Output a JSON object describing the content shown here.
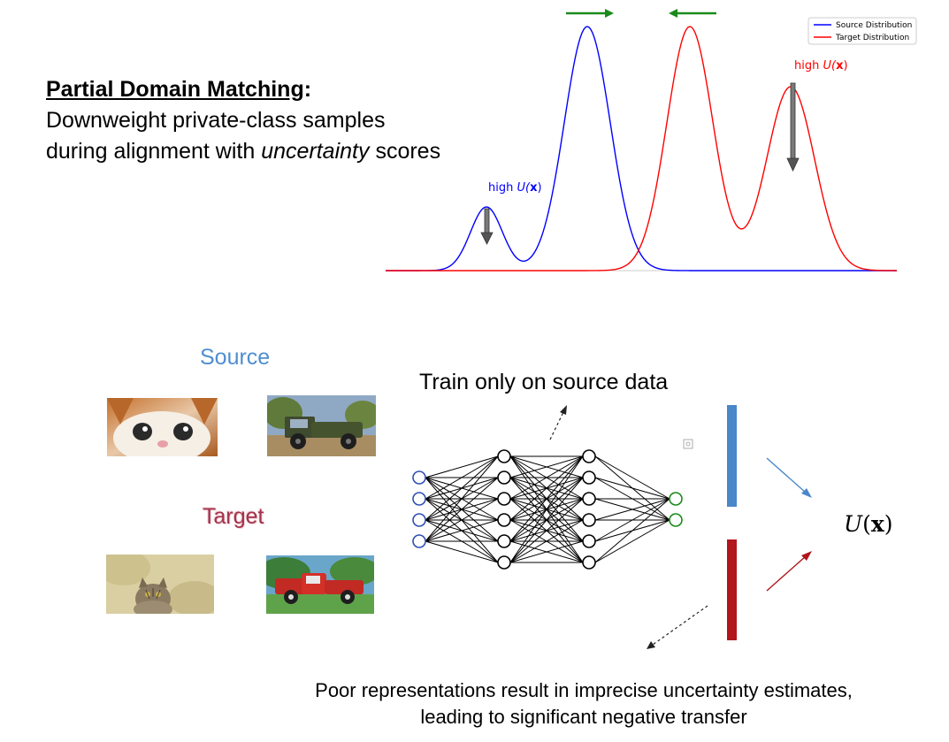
{
  "heading": {
    "title": "Partial Domain Matching",
    "colon": ":",
    "line2": "Downweight private-class samples",
    "line3_prefix": "during alignment with ",
    "line3_italic": "uncertainty",
    "line3_suffix": " scores"
  },
  "distribution_plot": {
    "legend": [
      {
        "label": "Source Distribution",
        "color": "#0000ff"
      },
      {
        "label": "Target Distribution",
        "color": "#ff0000"
      }
    ],
    "annotations": [
      {
        "text_prefix": "high ",
        "text_u": "U(",
        "text_x": "x",
        "text_close": ")",
        "color": "#0000ff"
      },
      {
        "text_prefix": "high ",
        "text_u": "U(",
        "text_x": "x",
        "text_close": ")",
        "color": "#ff0000"
      }
    ],
    "arrow_color": "#1a8a1a"
  },
  "labels": {
    "source": "Source",
    "target": "Target",
    "train": "Train only on source data",
    "ux_u": "U",
    "ux_open": "(",
    "ux_x": "x",
    "ux_close": ")"
  },
  "bottom": {
    "line1": "Poor representations result in imprecise uncertainty estimates,",
    "line2": "leading to significant negative transfer"
  },
  "images": {
    "source": [
      "cat-photo",
      "truck-photo"
    ],
    "target": [
      "cat-painting",
      "truck-painting"
    ]
  }
}
